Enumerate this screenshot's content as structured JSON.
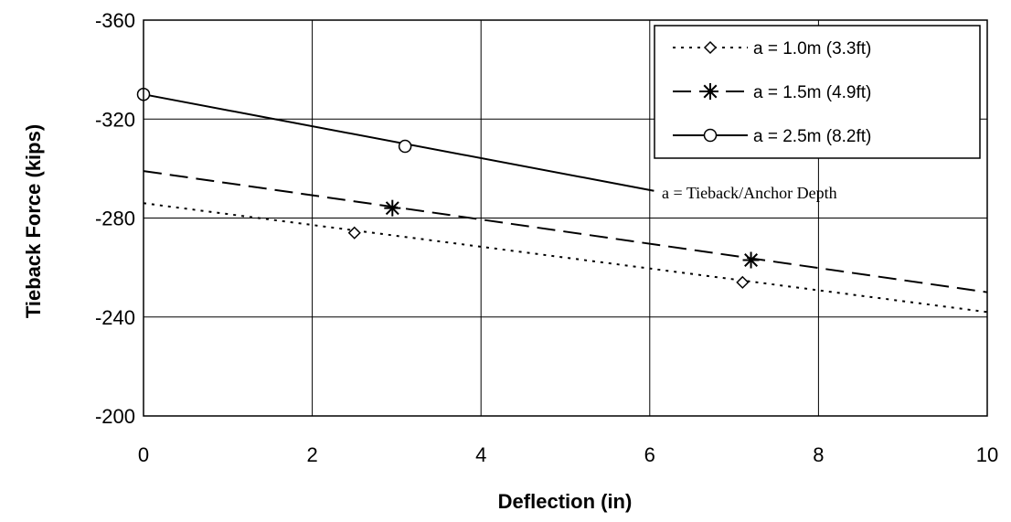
{
  "chart_data": {
    "type": "line",
    "xlabel": "Deflection (in)",
    "ylabel": "Tieback Force (kips)",
    "xlim": [
      0,
      10
    ],
    "ylim": [
      -200,
      -360
    ],
    "x_ticks": [
      0,
      2,
      4,
      6,
      8,
      10
    ],
    "y_ticks": [
      -360,
      -320,
      -280,
      -240,
      -200
    ],
    "x_tick_labels": [
      "0",
      "2",
      "4",
      "6",
      "8",
      "10"
    ],
    "y_tick_labels": [
      "-360",
      "-320",
      "-280",
      "-240",
      "-200"
    ],
    "grid": true,
    "legend_position": "top-right",
    "annotation": "a = Tieback/Anchor Depth",
    "series": [
      {
        "name": "a = 1.0m (3.3ft)",
        "marker": "diamond",
        "line_style": "dotted",
        "points": [
          [
            2.5,
            -274
          ],
          [
            7.1,
            -254
          ]
        ],
        "trend": [
          [
            0,
            -286
          ],
          [
            10,
            -242
          ]
        ]
      },
      {
        "name": "a = 1.5m (4.9ft)",
        "marker": "asterisk",
        "line_style": "dashed",
        "points": [
          [
            2.95,
            -284
          ],
          [
            7.2,
            -263
          ]
        ],
        "trend": [
          [
            0,
            -299
          ],
          [
            10,
            -250
          ]
        ]
      },
      {
        "name": "a = 2.5m (8.2ft)",
        "marker": "circle",
        "line_style": "solid",
        "points": [
          [
            0,
            -330
          ],
          [
            3.1,
            -309
          ]
        ],
        "trend": [
          [
            0,
            -330
          ],
          [
            6.05,
            -291
          ]
        ]
      }
    ]
  }
}
